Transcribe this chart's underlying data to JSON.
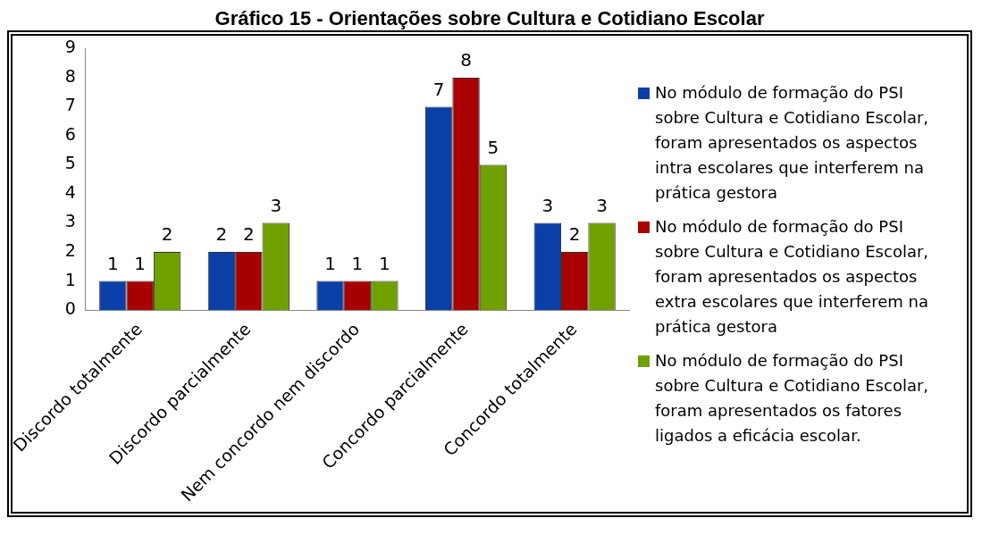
{
  "chart_data": {
    "type": "bar",
    "title": "Gráfico 15 - Orientações sobre Cultura e Cotidiano Escolar",
    "categories": [
      "Discordo totalmente",
      "Discordo parcialmente",
      "Nem concordo nem discordo",
      "Concordo parcialmente",
      "Concordo totalmente"
    ],
    "series": [
      {
        "name": "No módulo de formação do PSI sobre Cultura e Cotidiano Escolar, foram apresentados os aspectos intra escolares que interferem na prática gestora",
        "color": "#0b3fa8",
        "values": [
          1,
          2,
          1,
          7,
          3
        ]
      },
      {
        "name": "No módulo de formação do PSI sobre Cultura e Cotidiano Escolar, foram apresentados os aspectos extra escolares que interferem na prática gestora",
        "color": "#a80000",
        "values": [
          1,
          2,
          1,
          8,
          2
        ]
      },
      {
        "name": "No módulo de formação do PSI sobre Cultura e Cotidiano Escolar, foram apresentados os fatores ligados a eficácia escolar.",
        "color": "#6fa000",
        "values": [
          2,
          3,
          1,
          5,
          3
        ]
      }
    ],
    "ylim": [
      0,
      9
    ],
    "yticks": [
      0,
      1,
      2,
      3,
      4,
      5,
      6,
      7,
      8,
      9
    ],
    "grid": false,
    "legend": "right",
    "data_labels": true
  }
}
